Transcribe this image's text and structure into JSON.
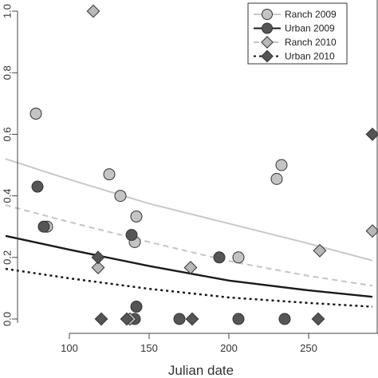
{
  "chart_data": {
    "type": "scatter",
    "title": "",
    "xlabel": "Julian date",
    "ylabel": "",
    "xlim": [
      60,
      290
    ],
    "ylim": [
      0,
      1.0
    ],
    "xticks": [
      100,
      150,
      200,
      250
    ],
    "yticks": [
      0.0,
      0.2,
      0.4,
      0.6,
      0.8,
      1.0
    ],
    "ytick_labels": [
      "0.0",
      "0.2",
      "0.4",
      "0.6",
      "0.8",
      "1.0"
    ],
    "grid": false,
    "legend_position": "top-right",
    "series": [
      {
        "name": "Ranch 2009",
        "marker": "circle",
        "marker_color": "#c4c4c4",
        "line_color": "#c8c8c8",
        "line_style": "solid",
        "points": [
          [
            79,
            0.667
          ],
          [
            86,
            0.3
          ],
          [
            125,
            0.47
          ],
          [
            132,
            0.4
          ],
          [
            142,
            0.333
          ],
          [
            141,
            0.25
          ],
          [
            230,
            0.455
          ],
          [
            233,
            0.5
          ],
          [
            206,
            0.2
          ]
        ],
        "curve": [
          [
            60,
            0.52
          ],
          [
            100,
            0.453
          ],
          [
            150,
            0.375
          ],
          [
            200,
            0.31
          ],
          [
            250,
            0.245
          ],
          [
            290,
            0.19
          ]
        ]
      },
      {
        "name": "Urban 2009",
        "marker": "circle",
        "marker_color": "#555555",
        "line_color": "#1a1a1a",
        "line_style": "solid",
        "points": [
          [
            80,
            0.43
          ],
          [
            84,
            0.3
          ],
          [
            139,
            0.273
          ],
          [
            142,
            0.04
          ],
          [
            141,
            0.0
          ],
          [
            169,
            0.0
          ],
          [
            194,
            0.2
          ],
          [
            206,
            0.0
          ],
          [
            235,
            0.0
          ]
        ],
        "curve": [
          [
            60,
            0.27
          ],
          [
            100,
            0.225
          ],
          [
            150,
            0.172
          ],
          [
            200,
            0.125
          ],
          [
            250,
            0.093
          ],
          [
            290,
            0.072
          ]
        ]
      },
      {
        "name": "Ranch 2010",
        "marker": "diamond",
        "marker_color": "#b8b8b8",
        "line_color": "#c4c4c4",
        "line_style": "dashed",
        "points": [
          [
            115,
            1.0
          ],
          [
            118,
            0.167
          ],
          [
            138,
            0.0
          ],
          [
            176,
            0.167
          ],
          [
            257,
            0.222
          ],
          [
            290,
            0.286
          ]
        ],
        "curve": [
          [
            60,
            0.37
          ],
          [
            100,
            0.315
          ],
          [
            150,
            0.25
          ],
          [
            200,
            0.188
          ],
          [
            250,
            0.14
          ],
          [
            290,
            0.108
          ]
        ]
      },
      {
        "name": "Urban 2010",
        "marker": "diamond",
        "marker_color": "#555555",
        "line_color": "#111111",
        "line_style": "dotted",
        "points": [
          [
            118,
            0.2
          ],
          [
            120,
            0.0
          ],
          [
            136,
            0.0
          ],
          [
            177,
            0.0
          ],
          [
            256,
            0.0
          ],
          [
            290,
            0.6
          ]
        ],
        "curve": [
          [
            60,
            0.163
          ],
          [
            100,
            0.132
          ],
          [
            150,
            0.098
          ],
          [
            200,
            0.07
          ],
          [
            250,
            0.052
          ],
          [
            290,
            0.04
          ]
        ]
      }
    ]
  }
}
